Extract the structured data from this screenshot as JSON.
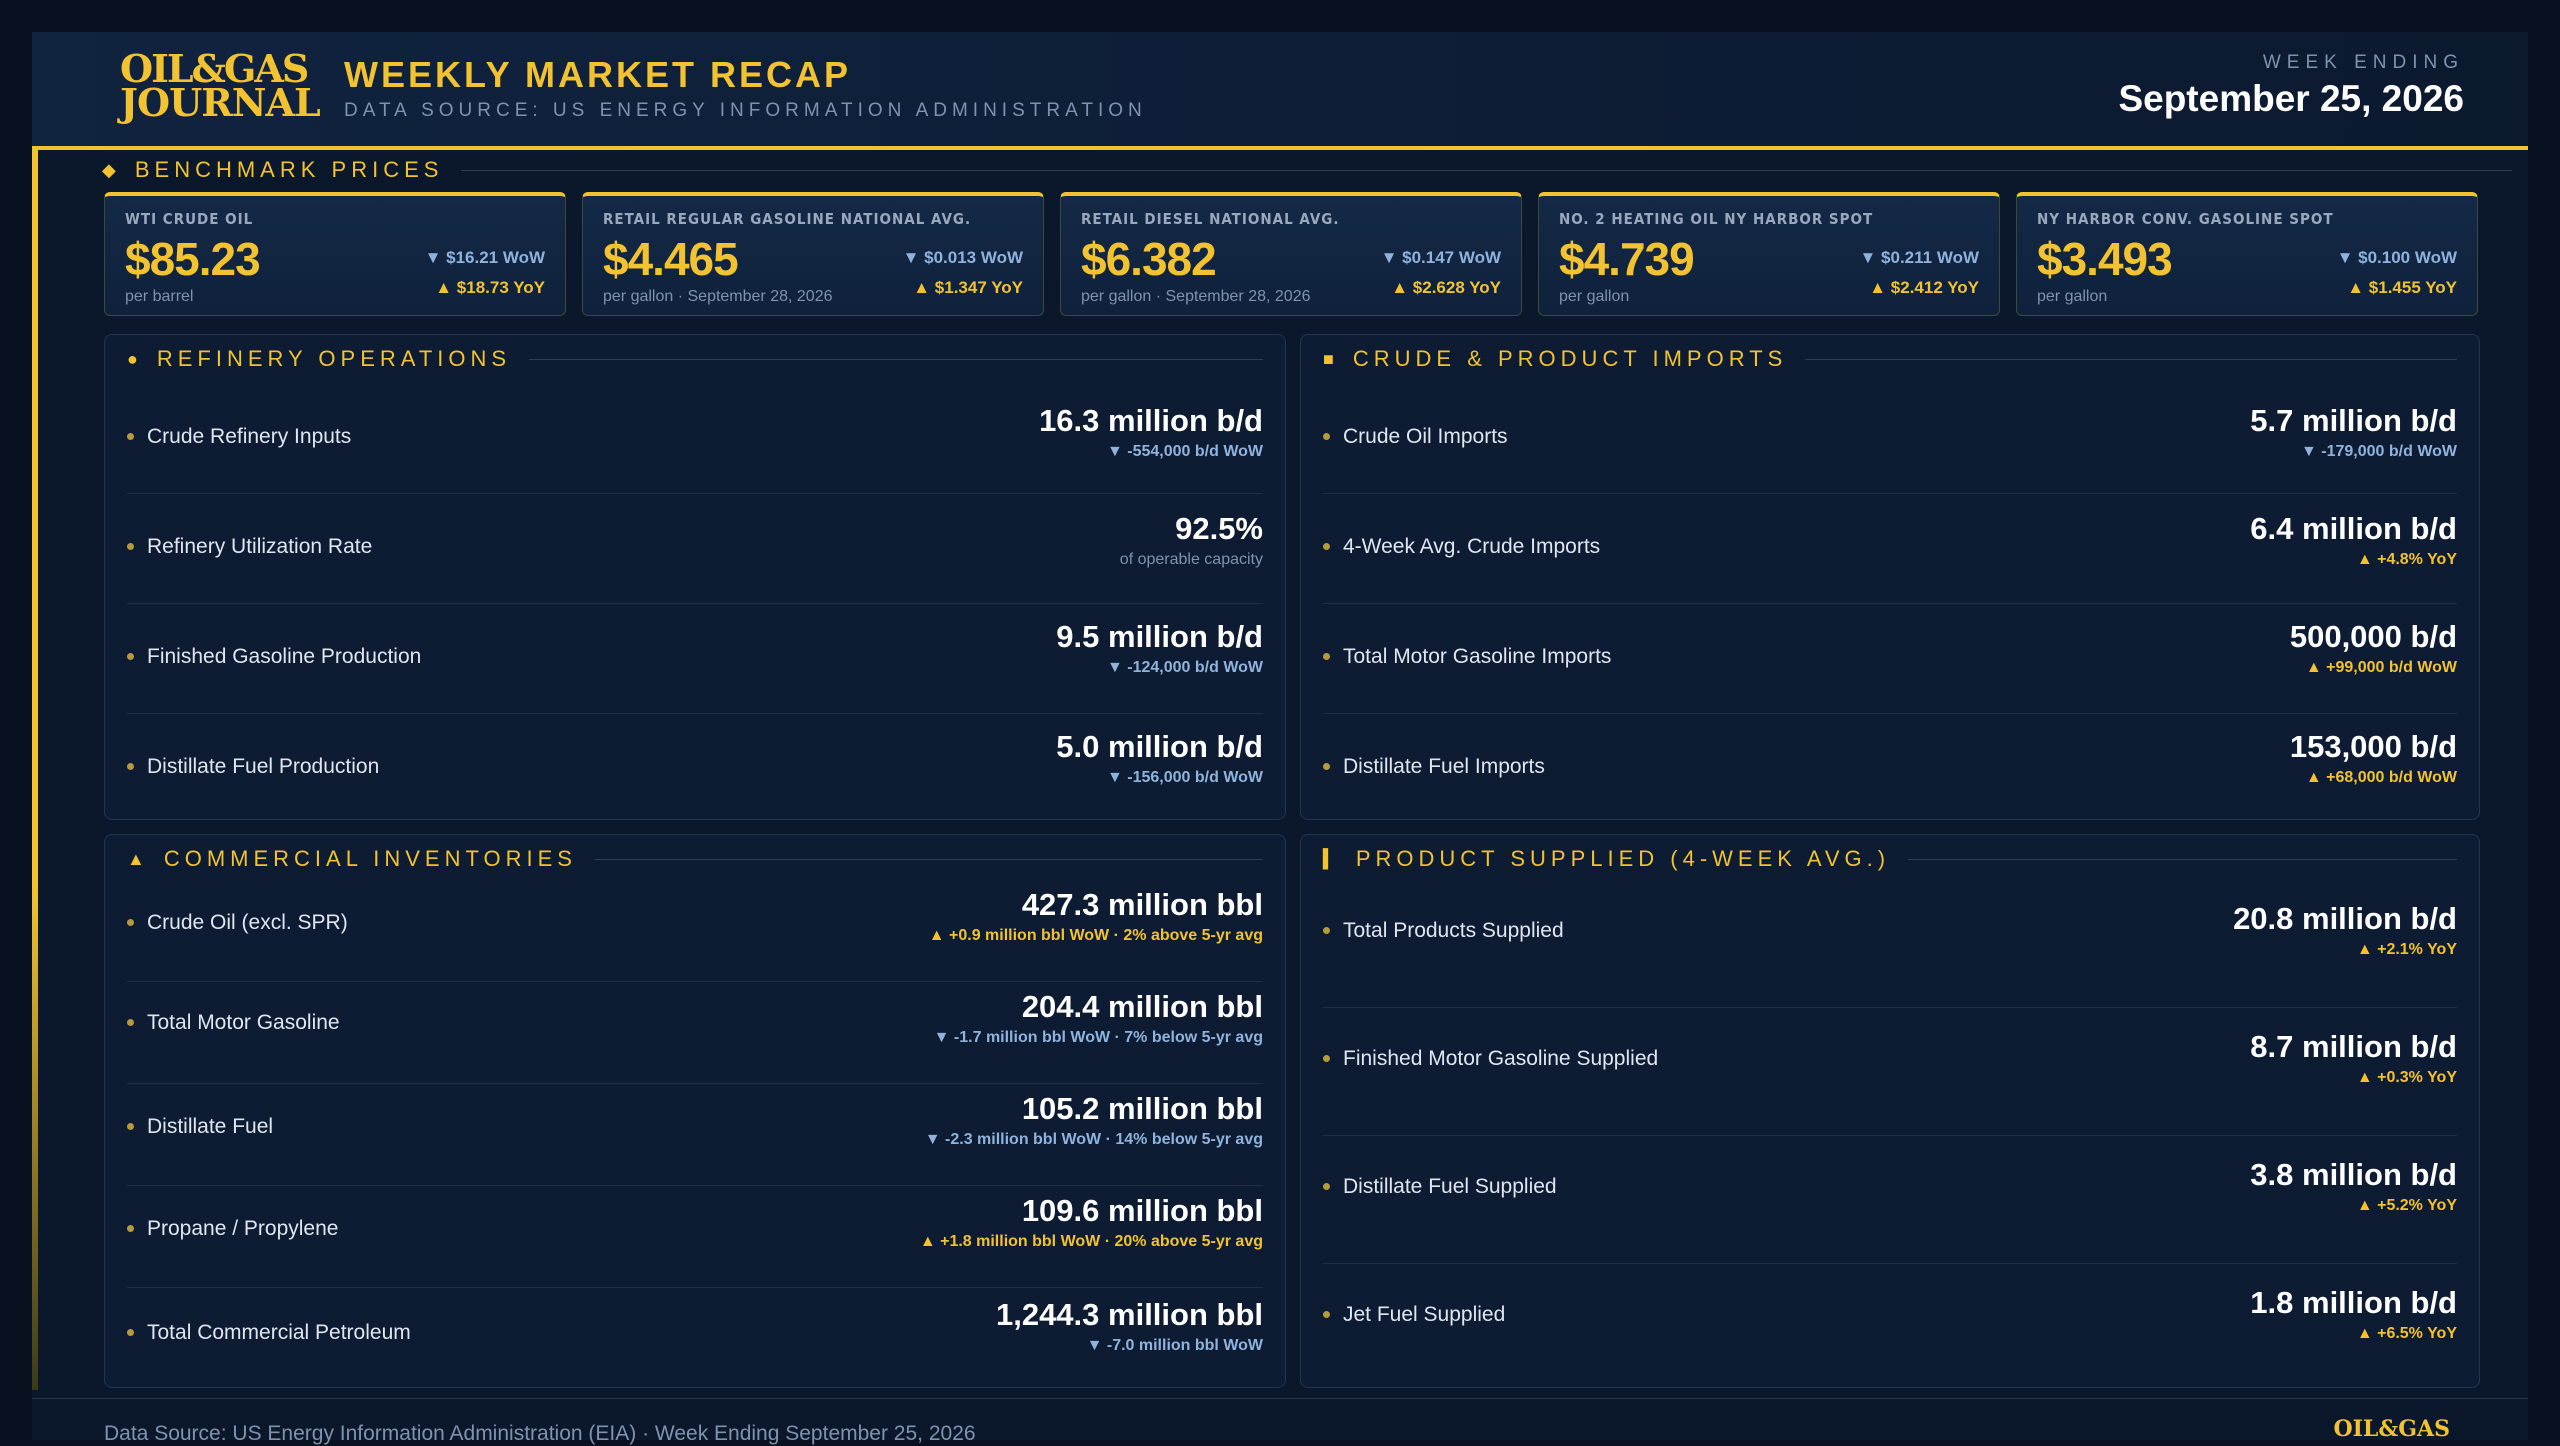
{
  "header": {
    "logo_line1": "OIL&GAS",
    "logo_line2": "JOURNAL",
    "title": "WEEKLY MARKET RECAP",
    "subtitle": "DATA SOURCE: US ENERGY INFORMATION ADMINISTRATION",
    "week_label": "WEEK ENDING",
    "week_date": "September 25, 2026"
  },
  "benchmark": {
    "heading": "BENCHMARK PRICES",
    "cards": [
      {
        "label": "WTI CRUDE OIL",
        "price": "$85.23",
        "unit": "per barrel",
        "wow": "▼ $16.21 WoW",
        "yoy": "▲ $18.73 YoY"
      },
      {
        "label": "RETAIL REGULAR GASOLINE NATIONAL AVG.",
        "price": "$4.465",
        "unit": "per gallon · September 28, 2026",
        "wow": "▼ $0.013 WoW",
        "yoy": "▲ $1.347 YoY"
      },
      {
        "label": "RETAIL DIESEL NATIONAL AVG.",
        "price": "$6.382",
        "unit": "per gallon · September 28, 2026",
        "wow": "▼ $0.147 WoW",
        "yoy": "▲ $2.628 YoY"
      },
      {
        "label": "NO. 2 HEATING OIL NY HARBOR SPOT",
        "price": "$4.739",
        "unit": "per gallon",
        "wow": "▼ $0.211 WoW",
        "yoy": "▲ $2.412 YoY"
      },
      {
        "label": "NY HARBOR CONV. GASOLINE SPOT",
        "price": "$3.493",
        "unit": "per gallon",
        "wow": "▼ $0.100 WoW",
        "yoy": "▲ $1.455 YoY"
      }
    ]
  },
  "refinery": {
    "heading": "REFINERY OPERATIONS",
    "rows": [
      {
        "name": "Crude Refinery Inputs",
        "value": "16.3 million b/d",
        "change": "▼ -554,000 b/d WoW"
      },
      {
        "name": "Refinery Utilization Rate",
        "value": "92.5%",
        "change": "of operable capacity"
      },
      {
        "name": "Finished Gasoline Production",
        "value": "9.5 million b/d",
        "change": "▼ -124,000 b/d WoW"
      },
      {
        "name": "Distillate Fuel Production",
        "value": "5.0 million b/d",
        "change": "▼ -156,000 b/d WoW"
      }
    ]
  },
  "imports": {
    "heading": "CRUDE & PRODUCT IMPORTS",
    "rows": [
      {
        "name": "Crude Oil Imports",
        "value": "5.7 million b/d",
        "change": "▼ -179,000 b/d WoW"
      },
      {
        "name": "4-Week Avg. Crude Imports",
        "value": "6.4 million b/d",
        "change": "▲ +4.8% YoY"
      },
      {
        "name": "Total Motor Gasoline Imports",
        "value": "500,000 b/d",
        "change": "▲ +99,000 b/d WoW"
      },
      {
        "name": "Distillate Fuel Imports",
        "value": "153,000 b/d",
        "change": "▲ +68,000 b/d WoW"
      }
    ]
  },
  "inventories": {
    "heading": "COMMERCIAL INVENTORIES",
    "rows": [
      {
        "name": "Crude Oil (excl. SPR)",
        "value": "427.3 million bbl",
        "change": "▲ +0.9 million bbl WoW · 2% above 5-yr avg"
      },
      {
        "name": "Total Motor Gasoline",
        "value": "204.4 million bbl",
        "change": "▼ -1.7 million bbl WoW · 7% below 5-yr avg"
      },
      {
        "name": "Distillate Fuel",
        "value": "105.2 million bbl",
        "change": "▼ -2.3 million bbl WoW · 14% below 5-yr avg"
      },
      {
        "name": "Propane / Propylene",
        "value": "109.6 million bbl",
        "change": "▲ +1.8 million bbl WoW · 20% above 5-yr avg"
      },
      {
        "name": "Total Commercial Petroleum",
        "value": "1,244.3 million bbl",
        "change": "▼ -7.0 million bbl WoW"
      }
    ]
  },
  "supplied": {
    "heading": "PRODUCT SUPPLIED (4-WEEK AVG.)",
    "rows": [
      {
        "name": "Total Products Supplied",
        "value": "20.8 million b/d",
        "change": "▲ +2.1% YoY"
      },
      {
        "name": "Finished Motor Gasoline Supplied",
        "value": "8.7 million b/d",
        "change": "▲ +0.3% YoY"
      },
      {
        "name": "Distillate Fuel Supplied",
        "value": "3.8 million b/d",
        "change": "▲ +5.2% YoY"
      },
      {
        "name": "Jet Fuel Supplied",
        "value": "1.8 million b/d",
        "change": "▲ +6.5% YoY"
      }
    ]
  },
  "footer": {
    "text": "Data Source: US Energy Information Administration (EIA)  ·  Week Ending September 25, 2026",
    "logo": "OIL&GAS"
  },
  "colors": {
    "accent": "#f2c230",
    "down": "#8fb3dd",
    "background": "#0b182c"
  }
}
